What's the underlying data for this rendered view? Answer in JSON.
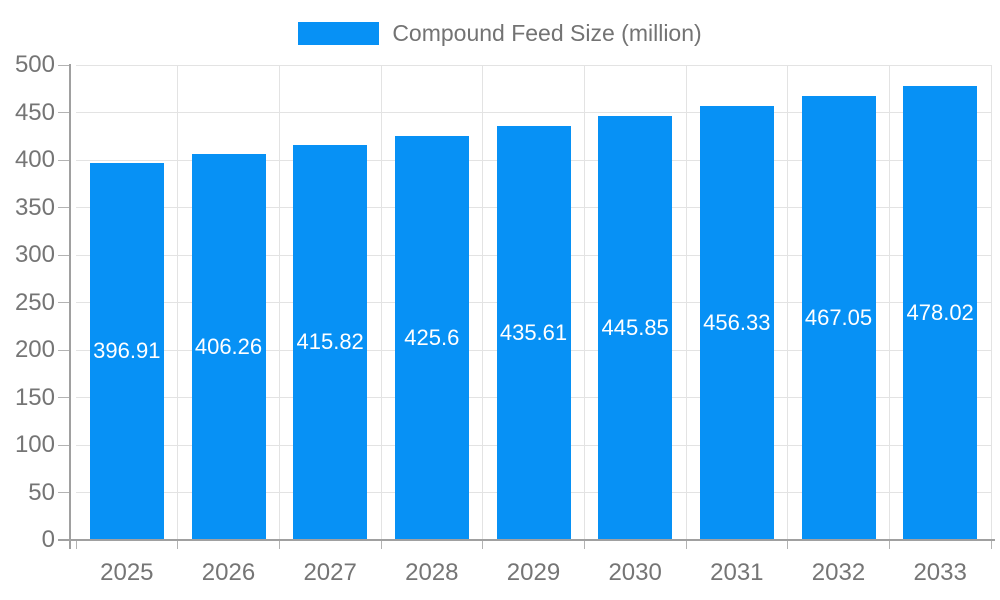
{
  "chart_data": {
    "type": "bar",
    "title": "",
    "xlabel": "",
    "ylabel": "",
    "legend": "Compound Feed Size (million)",
    "legend_position": "top",
    "categories": [
      "2025",
      "2026",
      "2027",
      "2028",
      "2029",
      "2030",
      "2031",
      "2032",
      "2033"
    ],
    "values": [
      396.91,
      406.26,
      415.82,
      425.6,
      435.61,
      445.85,
      456.33,
      467.05,
      478.02
    ],
    "value_labels": [
      "396.91",
      "406.26",
      "415.82",
      "425.6",
      "435.61",
      "445.85",
      "456.33",
      "467.05",
      "478.02"
    ],
    "ylim": [
      0,
      500
    ],
    "ytick_step": 50,
    "ytick_labels": [
      "0",
      "50",
      "100",
      "150",
      "200",
      "250",
      "300",
      "350",
      "400",
      "450",
      "500"
    ],
    "grid": true,
    "colors": {
      "bar": "#0791f5",
      "bar_value_label": "#ffffff",
      "axis_line": "#a0a0a0",
      "grid_line": "#e3e3e3",
      "tick_mark": "#b3b3b3",
      "tick_label": "#757575",
      "legend_text": "#737373"
    }
  }
}
